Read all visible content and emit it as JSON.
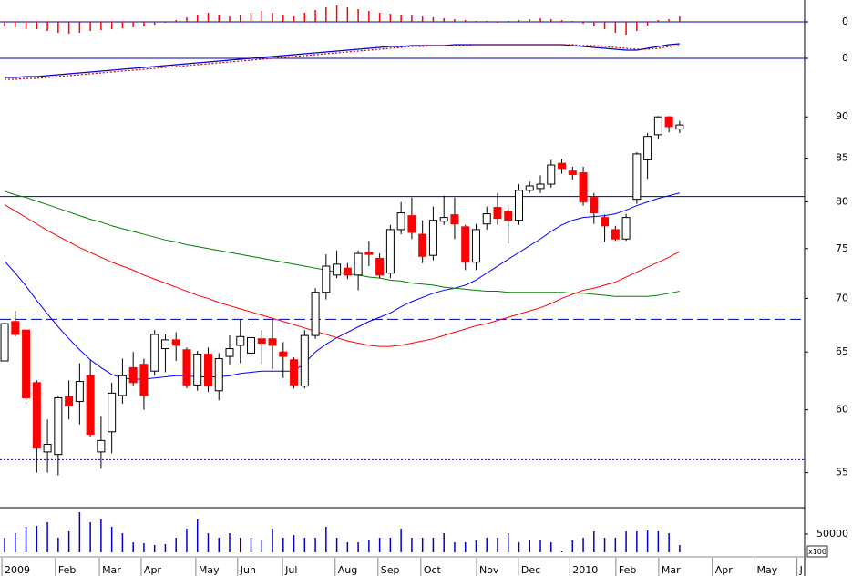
{
  "chart_data": [
    {
      "type": "bar",
      "color": "#ff0000",
      "xlim": [
        -0.43,
        74.66
      ],
      "ylim": [
        -16,
        24
      ],
      "yticks": [
        0
      ],
      "grid": true,
      "values": [
        -5,
        -6,
        -8,
        -8,
        -10,
        -12,
        -13,
        -12,
        -10,
        -9,
        -8,
        -7,
        -6,
        -5,
        -3,
        -1,
        2,
        5,
        8,
        10,
        8,
        6,
        8,
        10,
        12,
        10,
        8,
        6,
        10,
        13,
        16,
        18,
        16,
        14,
        12,
        10,
        9,
        8,
        7,
        6,
        5,
        4,
        3,
        2,
        1,
        1,
        -1,
        1,
        2,
        3,
        4,
        3,
        2,
        1,
        -2,
        -5,
        -8,
        -12,
        -14,
        -10,
        -4,
        2,
        3,
        6
      ]
    },
    {
      "type": "line",
      "xlim": [
        -0.43,
        74.66
      ],
      "ylim": [
        -32,
        24
      ],
      "yticks": [
        0
      ],
      "grid": true,
      "series": [
        {
          "color": "#0000cc",
          "style": "solid",
          "values": [
            -21,
            -21,
            -20,
            -20,
            -19,
            -18,
            -17,
            -16,
            -15,
            -14,
            -13,
            -12,
            -11,
            -10,
            -9,
            -8,
            -7,
            -6,
            -5,
            -4,
            -3,
            -2,
            -1,
            0,
            1,
            2,
            3,
            4,
            5,
            6,
            7,
            8,
            9,
            10,
            11,
            12,
            13,
            13,
            14,
            14,
            14,
            14,
            15,
            15,
            15,
            15,
            15,
            15,
            15,
            15,
            15,
            15,
            15,
            14,
            13,
            12,
            11,
            10,
            9,
            9,
            11,
            13,
            15,
            16
          ]
        },
        {
          "color": "#cc0000",
          "style": "dotted",
          "values": [
            -23,
            -23,
            -22,
            -22,
            -21,
            -20,
            -19,
            -18,
            -17,
            -16,
            -15,
            -14,
            -13,
            -12,
            -11,
            -10,
            -9,
            -8,
            -7,
            -6,
            -5,
            -4,
            -3,
            -2,
            -1,
            0,
            1,
            2,
            3,
            4,
            5,
            6,
            7,
            8,
            9,
            10,
            11,
            12,
            13,
            13,
            14,
            14,
            14,
            14,
            15,
            15,
            15,
            15,
            15,
            15,
            15,
            15,
            15,
            15,
            14,
            14,
            13,
            12,
            11,
            10,
            10,
            11,
            13,
            14
          ]
        }
      ]
    },
    {
      "type": "candlestick",
      "log": true,
      "xlim": [
        -0.43,
        74.66
      ],
      "ylim": [
        52.4,
        93.5
      ],
      "yticks": [
        55,
        60,
        65,
        70,
        75,
        80,
        85,
        90
      ],
      "grid": false,
      "up_color": "#ffffff",
      "down_color": "#ff0000",
      "open": [
        64.2,
        67.8,
        67.0,
        62.3,
        56.6,
        56.4,
        61.1,
        60.7,
        62.9,
        56.6,
        58.2,
        61.2,
        63.6,
        63.9,
        63.3,
        65.3,
        66.1,
        65.2,
        62.1,
        64.8,
        61.6,
        64.6,
        65.6,
        64.9,
        66.2,
        66.2,
        65.0,
        64.3,
        62.0,
        66.5,
        70.6,
        72.3,
        73.0,
        72.3,
        74.6,
        74.0,
        72.5,
        77.0,
        78.5,
        76.5,
        74.3,
        77.9,
        78.6,
        77.3,
        73.6,
        77.6,
        79.4,
        79.0,
        78.0,
        81.3,
        81.5,
        82.0,
        84.4,
        83.5,
        83.3,
        80.5,
        78.3,
        77.0,
        76.0,
        80.3,
        84.8,
        87.8,
        90.0,
        88.5
      ],
      "high": [
        67.7,
        68.8,
        67.0,
        62.5,
        59.2,
        61.2,
        62.5,
        64.0,
        64.3,
        59.5,
        62.3,
        64.4,
        65.0,
        64.4,
        67.0,
        66.6,
        66.8,
        65.4,
        65.1,
        65.4,
        64.9,
        66.5,
        68.0,
        67.6,
        67.0,
        68.0,
        65.9,
        64.5,
        67.0,
        71.0,
        74.4,
        74.8,
        73.5,
        74.8,
        75.8,
        74.5,
        77.5,
        80.0,
        80.5,
        78.0,
        79.5,
        80.7,
        80.5,
        77.5,
        77.6,
        79.5,
        81.0,
        79.4,
        82.0,
        82.3,
        83.0,
        84.8,
        84.9,
        84.0,
        84.0,
        81.0,
        78.6,
        77.4,
        78.7,
        85.7,
        88.0,
        90.1,
        90.1,
        89.5
      ],
      "low": [
        64.3,
        66.4,
        60.5,
        55.0,
        55.0,
        54.8,
        59.2,
        58.8,
        57.8,
        55.3,
        56.5,
        60.5,
        62.0,
        60.0,
        62.9,
        63.2,
        64.2,
        61.8,
        61.6,
        61.5,
        60.8,
        63.9,
        64.0,
        64.6,
        63.9,
        63.5,
        62.7,
        61.8,
        61.8,
        66.2,
        69.9,
        72.0,
        71.9,
        70.8,
        73.2,
        72.0,
        72.0,
        76.5,
        76.0,
        73.5,
        73.8,
        77.5,
        76.0,
        72.8,
        72.8,
        77.0,
        77.5,
        75.5,
        77.5,
        81.0,
        81.0,
        81.6,
        83.2,
        82.5,
        79.6,
        77.6,
        75.7,
        75.8,
        75.8,
        79.8,
        82.6,
        87.3,
        88.1,
        88.0
      ],
      "close": [
        67.6,
        66.6,
        61.0,
        56.9,
        57.2,
        61.0,
        60.3,
        62.4,
        58.0,
        57.5,
        61.4,
        62.9,
        62.3,
        61.2,
        66.6,
        66.1,
        65.6,
        62.1,
        64.8,
        62.0,
        64.4,
        65.3,
        66.4,
        66.3,
        65.8,
        65.6,
        64.6,
        62.1,
        66.5,
        70.6,
        73.2,
        73.4,
        72.3,
        74.5,
        74.4,
        72.3,
        77.0,
        78.8,
        76.7,
        74.2,
        78.0,
        78.3,
        77.6,
        73.6,
        77.0,
        78.7,
        78.2,
        78.0,
        81.3,
        81.8,
        82.0,
        84.2,
        83.8,
        83.1,
        80.0,
        78.8,
        77.4,
        76.0,
        78.3,
        85.5,
        87.6,
        90.0,
        88.8,
        89.0
      ],
      "lines": [
        {
          "color": "#0000ff",
          "values": [
            73.7,
            72.5,
            71.2,
            69.8,
            68.5,
            67.3,
            66.2,
            65.2,
            64.3,
            63.6,
            63.0,
            62.7,
            62.6,
            62.6,
            62.7,
            62.8,
            62.9,
            62.9,
            62.8,
            62.8,
            62.8,
            62.9,
            63.1,
            63.2,
            63.3,
            63.3,
            63.3,
            63.3,
            64.0,
            65.0,
            65.7,
            66.3,
            66.8,
            67.3,
            67.8,
            68.2,
            68.6,
            69.2,
            69.7,
            70.1,
            70.5,
            70.8,
            71.0,
            71.3,
            71.8,
            72.5,
            73.2,
            73.9,
            74.6,
            75.3,
            76.0,
            76.8,
            77.5,
            78.0,
            78.3,
            78.4,
            78.5,
            78.7,
            79.1,
            79.6,
            80.0,
            80.4,
            80.7,
            81.0
          ]
        },
        {
          "color": "#ff0000",
          "values": [
            79.7,
            79.0,
            78.3,
            77.6,
            76.9,
            76.3,
            75.7,
            75.1,
            74.6,
            74.1,
            73.6,
            73.2,
            72.8,
            72.3,
            71.9,
            71.5,
            71.1,
            70.7,
            70.3,
            70.0,
            69.6,
            69.3,
            69.0,
            68.7,
            68.4,
            68.1,
            67.8,
            67.5,
            67.2,
            66.9,
            66.6,
            66.3,
            66.0,
            65.8,
            65.6,
            65.5,
            65.5,
            65.6,
            65.8,
            66.0,
            66.2,
            66.5,
            66.8,
            67.1,
            67.4,
            67.6,
            67.9,
            68.2,
            68.5,
            68.8,
            69.1,
            69.5,
            70.0,
            70.4,
            70.8,
            71.0,
            71.3,
            71.6,
            72.1,
            72.6,
            73.1,
            73.6,
            74.1,
            74.7
          ]
        },
        {
          "color": "#008000",
          "values": [
            81.2,
            80.8,
            80.5,
            80.1,
            79.7,
            79.3,
            78.9,
            78.5,
            78.1,
            77.8,
            77.4,
            77.1,
            76.8,
            76.5,
            76.2,
            75.9,
            75.7,
            75.4,
            75.2,
            75.0,
            74.8,
            74.6,
            74.4,
            74.2,
            74.0,
            73.8,
            73.6,
            73.4,
            73.2,
            73.0,
            72.8,
            72.6,
            72.4,
            72.3,
            72.1,
            72.0,
            71.8,
            71.7,
            71.5,
            71.4,
            71.3,
            71.1,
            71.0,
            70.9,
            70.8,
            70.7,
            70.7,
            70.6,
            70.6,
            70.6,
            70.6,
            70.6,
            70.6,
            70.5,
            70.5,
            70.4,
            70.3,
            70.2,
            70.2,
            70.2,
            70.2,
            70.3,
            70.5,
            70.7
          ]
        }
      ],
      "hlines": [
        {
          "value": 80.6,
          "style": "solid",
          "color": "#0000aa"
        },
        {
          "value": 68.0,
          "style": "dashed",
          "color": "#0000aa"
        },
        {
          "value": 56.0,
          "style": "dotted",
          "color": "#0000aa"
        }
      ]
    },
    {
      "type": "bar",
      "color": "#0000cc",
      "xlim": [
        -0.43,
        74.66
      ],
      "ylim": [
        0,
        122500
      ],
      "yticks": [
        50000
      ],
      "grid": false,
      "y_unit": "x100",
      "values": [
        40000,
        52500,
        70000,
        72500,
        82500,
        40000,
        57500,
        110000,
        82500,
        90000,
        70000,
        52500,
        27500,
        25000,
        20000,
        22500,
        40000,
        65000,
        90000,
        52500,
        40000,
        52500,
        40000,
        40000,
        35000,
        65000,
        40000,
        47500,
        40000,
        40000,
        70000,
        40000,
        27500,
        27500,
        35000,
        40000,
        40000,
        65000,
        40000,
        40000,
        40000,
        52500,
        27500,
        27500,
        32500,
        40000,
        40000,
        52500,
        27500,
        35000,
        35000,
        27500,
        2500,
        32500,
        40000,
        57500,
        40000,
        40000,
        57500,
        57500,
        60000,
        57500,
        52500,
        20000
      ],
      "xticks": [
        {
          "value": 0,
          "label": "2009"
        },
        {
          "value": 5.0,
          "label": "Feb"
        },
        {
          "value": 9.1,
          "label": "Mar"
        },
        {
          "value": 13.0,
          "label": "Apr"
        },
        {
          "value": 18.1,
          "label": "May"
        },
        {
          "value": 22.0,
          "label": "Jun"
        },
        {
          "value": 26.2,
          "label": "Jul"
        },
        {
          "value": 31.1,
          "label": "Aug"
        },
        {
          "value": 35.1,
          "label": "Sep"
        },
        {
          "value": 39.1,
          "label": "Oct"
        },
        {
          "value": 44.3,
          "label": "Nov"
        },
        {
          "value": 48.2,
          "label": "Dec"
        },
        {
          "value": 53.0,
          "label": "2010"
        },
        {
          "value": 57.3,
          "label": "Feb"
        },
        {
          "value": 61.3,
          "label": "Mar"
        },
        {
          "value": 66.3,
          "label": "Apr"
        },
        {
          "value": 70.2,
          "label": "May"
        },
        {
          "value": 74.2,
          "label": "J"
        }
      ]
    }
  ]
}
